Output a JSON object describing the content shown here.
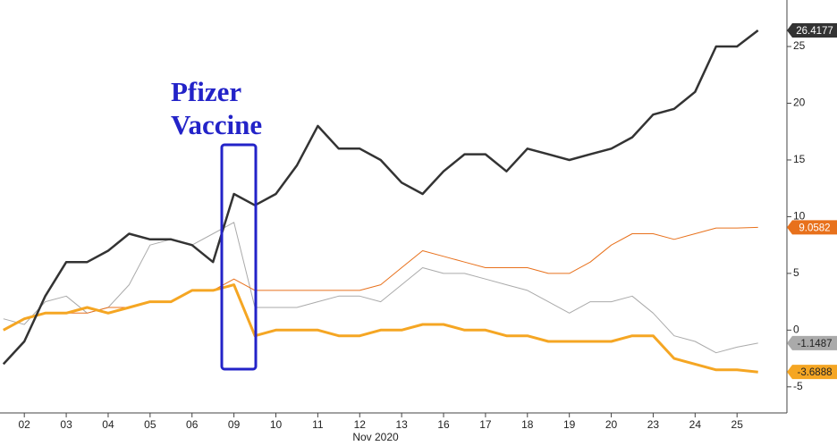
{
  "chart_data": {
    "type": "line",
    "x": [
      -0.5,
      0,
      0.5,
      1,
      1.5,
      2,
      2.5,
      3,
      3.5,
      4,
      4.5,
      5,
      5.5,
      6,
      6.5,
      7,
      7.5,
      8,
      8.5,
      9,
      9.5,
      10,
      10.5,
      11,
      11.5,
      12,
      12.5,
      13,
      13.5,
      14,
      14.5,
      15,
      15.5,
      16,
      16.5,
      17,
      17.5
    ],
    "xlim": [
      -0.58,
      18.19
    ],
    "xticks": [
      {
        "value": 0,
        "label": "02"
      },
      {
        "value": 1,
        "label": "03"
      },
      {
        "value": 2,
        "label": "04"
      },
      {
        "value": 3,
        "label": "05"
      },
      {
        "value": 4,
        "label": "06"
      },
      {
        "value": 5,
        "label": "09"
      },
      {
        "value": 6,
        "label": "10"
      },
      {
        "value": 7,
        "label": "11"
      },
      {
        "value": 8,
        "label": "12"
      },
      {
        "value": 9,
        "label": "13"
      },
      {
        "value": 10,
        "label": "16"
      },
      {
        "value": 11,
        "label": "17"
      },
      {
        "value": 12,
        "label": "18"
      },
      {
        "value": 13,
        "label": "19"
      },
      {
        "value": 14,
        "label": "20"
      },
      {
        "value": 15,
        "label": "23"
      },
      {
        "value": 16,
        "label": "24"
      },
      {
        "value": 17,
        "label": "25"
      }
    ],
    "x_label": "Nov 2020",
    "ylim": [
      -7.3,
      29.1
    ],
    "yticks": [
      -5,
      0,
      5,
      10,
      15,
      20,
      25
    ],
    "annotation": [
      "Pfizer",
      "Vaccine"
    ],
    "series": [
      {
        "color": "#aaaaaa",
        "width": 1,
        "tag_text": "#222222",
        "values": [
          1,
          0.5,
          2.5,
          3,
          1.5,
          2,
          4,
          7.5,
          8,
          7.5,
          8.5,
          9.5,
          2,
          2,
          2,
          2.5,
          3,
          3,
          2.5,
          4,
          5.5,
          5,
          5,
          4.5,
          4,
          3.5,
          2.5,
          1.5,
          2.5,
          2.5,
          3,
          1.5,
          -0.5,
          -1,
          -2,
          -1.5,
          -1.1487
        ]
      },
      {
        "color": "#e8711c",
        "width": 1,
        "tag_text": "#ffffff",
        "values": [
          0,
          1,
          1.5,
          1.5,
          1.5,
          2,
          2,
          2.5,
          2.5,
          3.5,
          3.5,
          4.5,
          3.5,
          3.5,
          3.5,
          3.5,
          3.5,
          3.5,
          4,
          5.5,
          7,
          6.5,
          6,
          5.5,
          5.5,
          5.5,
          5,
          5,
          6,
          7.5,
          8.5,
          8.5,
          8,
          8.5,
          9,
          9,
          9.0582
        ]
      },
      {
        "color": "#f5a623",
        "width": 3,
        "tag_text": "#222222",
        "values": [
          0,
          1,
          1.5,
          1.5,
          2,
          1.5,
          2,
          2.5,
          2.5,
          3.5,
          3.5,
          4,
          -0.5,
          0,
          0,
          0,
          -0.5,
          -0.5,
          0,
          0,
          0.5,
          0.5,
          0,
          0,
          -0.5,
          -0.5,
          -1,
          -1,
          -1,
          -1,
          -0.5,
          -0.5,
          -2.5,
          -3,
          -3.5,
          -3.5,
          -3.6888
        ]
      },
      {
        "color": "#333333",
        "width": 2.5,
        "tag_text": "#ffffff",
        "values": [
          -3,
          -1,
          3,
          6,
          6,
          7,
          8.5,
          8,
          8,
          7.5,
          6,
          12,
          11,
          12,
          14.5,
          18,
          16,
          16,
          15,
          13,
          12,
          14,
          15.5,
          15.5,
          14,
          16,
          15.5,
          15,
          15.5,
          16,
          17,
          19,
          19.5,
          21,
          25,
          25,
          26.4177
        ]
      }
    ]
  }
}
